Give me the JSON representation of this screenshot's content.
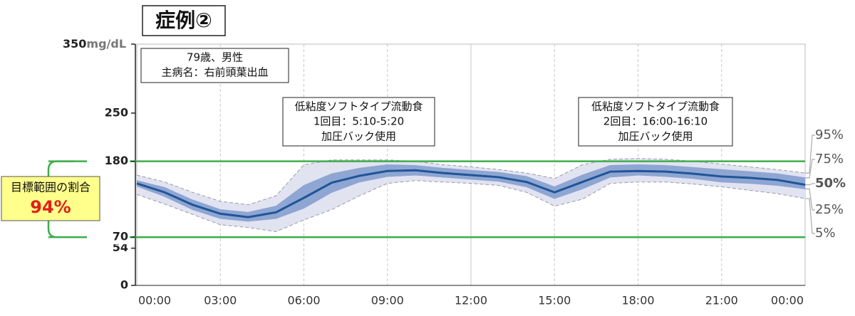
{
  "chart_data": {
    "type": "line",
    "title": "症例②",
    "x": [
      0,
      1,
      2,
      3,
      4,
      5,
      6,
      7,
      8,
      9,
      10,
      11,
      12,
      13,
      14,
      15,
      16,
      17,
      18,
      19,
      20,
      21,
      22,
      23,
      24
    ],
    "xlim": [
      0,
      24
    ],
    "xticks": [
      {
        "value": 0,
        "label": "00:00"
      },
      {
        "value": 3,
        "label": "03:00"
      },
      {
        "value": 6,
        "label": "06:00"
      },
      {
        "value": 9,
        "label": "09:00"
      },
      {
        "value": 12,
        "label": "12:00"
      },
      {
        "value": 15,
        "label": "15:00"
      },
      {
        "value": 18,
        "label": "18:00"
      },
      {
        "value": 21,
        "label": "21:00"
      },
      {
        "value": 24,
        "label": "00:00"
      }
    ],
    "ylim": [
      0,
      350
    ],
    "yticks": [
      0,
      54,
      70,
      180,
      250,
      350
    ],
    "y_unit": "mg/dL",
    "target_range": [
      70,
      180
    ],
    "target_color": "#3cae4a",
    "target_label": "目標範囲の割合",
    "target_value": 94,
    "target_value_label": "94%",
    "series": [
      {
        "name": "95%",
        "color": "#9a9aac",
        "values": [
          160,
          150,
          135,
          122,
          117,
          130,
          175,
          182,
          182,
          182,
          180,
          175,
          172,
          168,
          163,
          155,
          175,
          183,
          184,
          183,
          180,
          176,
          172,
          168,
          163
        ]
      },
      {
        "name": "75%",
        "color": "#8ea4d2",
        "values": [
          152,
          142,
          124,
          110,
          106,
          115,
          145,
          162,
          170,
          175,
          174,
          170,
          167,
          164,
          158,
          143,
          160,
          174,
          175,
          174,
          171,
          168,
          165,
          162,
          156
        ]
      },
      {
        "name": "50%",
        "color": "#1f5597",
        "values": [
          148,
          135,
          117,
          104,
          99,
          106,
          127,
          149,
          159,
          166,
          167,
          163,
          160,
          157,
          150,
          135,
          150,
          165,
          166,
          165,
          162,
          158,
          156,
          153,
          146
        ]
      },
      {
        "name": "25%",
        "color": "#8ea4d2",
        "values": [
          144,
          129,
          110,
          97,
          93,
          97,
          112,
          135,
          150,
          158,
          160,
          157,
          154,
          151,
          143,
          126,
          140,
          157,
          160,
          158,
          155,
          150,
          148,
          145,
          140
        ]
      },
      {
        "name": "5%",
        "color": "#9a9aac",
        "values": [
          132,
          118,
          103,
          88,
          84,
          78,
          95,
          110,
          130,
          148,
          152,
          150,
          148,
          145,
          135,
          115,
          125,
          148,
          150,
          150,
          147,
          143,
          138,
          133,
          126
        ]
      }
    ],
    "annotations": [
      {
        "lines": [
          "79歳、男性",
          "主病名：右前頭葉出血"
        ]
      },
      {
        "lines": [
          "低粘度ソフトタイプ流動食",
          "1回目：5:10-5:20",
          "加圧バック使用"
        ]
      },
      {
        "lines": [
          "低粘度ソフトタイプ流動食",
          "2回目：16:00-16:10",
          "加圧バック使用"
        ]
      }
    ]
  }
}
